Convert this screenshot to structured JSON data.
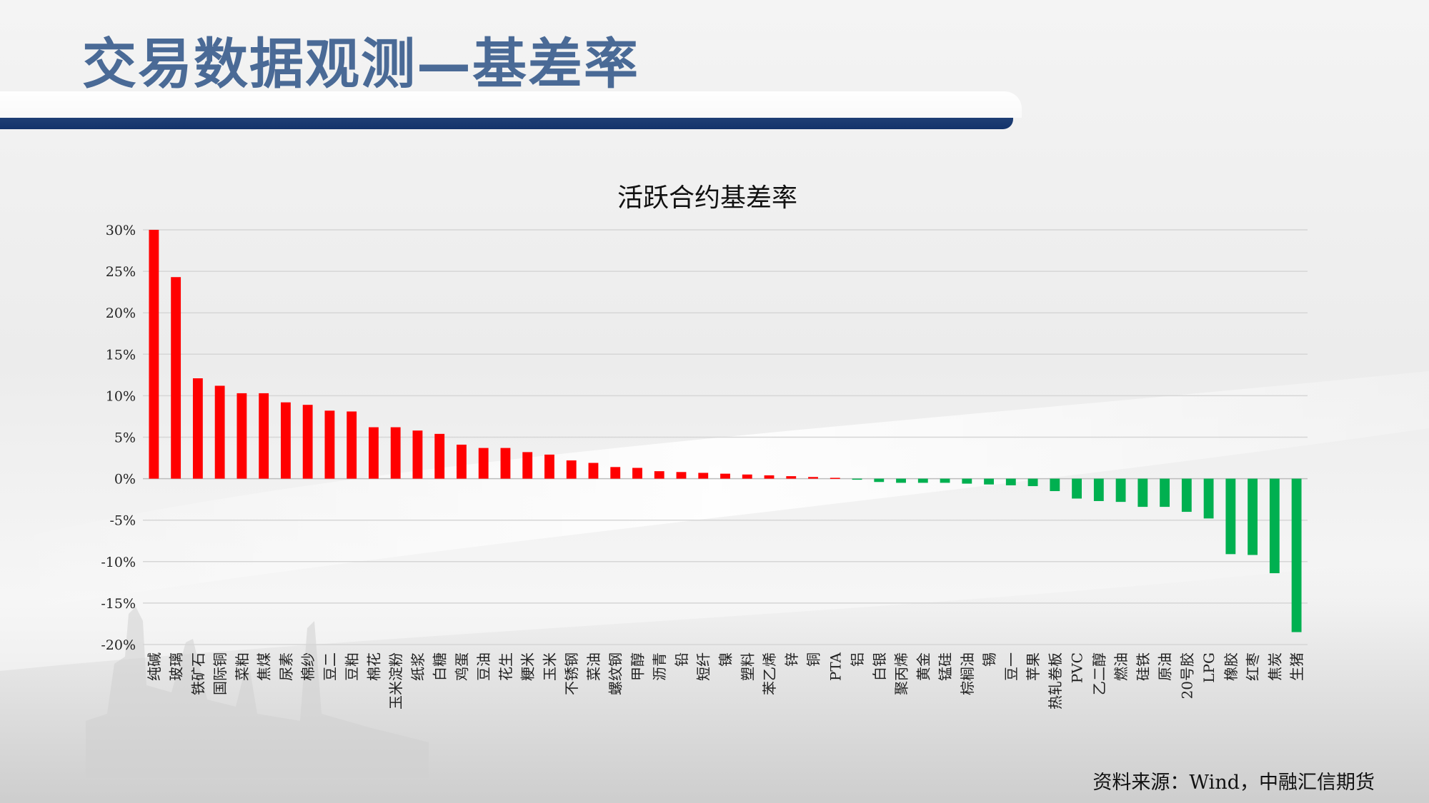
{
  "slide": {
    "title": "交易数据观测—基差率",
    "source": "资料来源：Wind，中融汇信期货"
  },
  "colors": {
    "positive": "#ff0000",
    "negative": "#00b050",
    "title": "#4a6a96",
    "rule": "#1f3f75"
  },
  "chart_data": {
    "type": "bar",
    "title": "活跃合约基差率",
    "xlabel": "",
    "ylabel": "",
    "ylim": [
      -0.2,
      0.3
    ],
    "yticks": [
      {
        "value": 0.3,
        "label": "30%"
      },
      {
        "value": 0.25,
        "label": "25%"
      },
      {
        "value": 0.2,
        "label": "20%"
      },
      {
        "value": 0.15,
        "label": "15%"
      },
      {
        "value": 0.1,
        "label": "10%"
      },
      {
        "value": 0.05,
        "label": "5%"
      },
      {
        "value": 0.0,
        "label": "0%"
      },
      {
        "value": -0.05,
        "label": "-5%"
      },
      {
        "value": -0.1,
        "label": "-10%"
      },
      {
        "value": -0.15,
        "label": "-15%"
      },
      {
        "value": -0.2,
        "label": "-20%"
      }
    ],
    "grid": true,
    "legend": "none",
    "categories": [
      "纯碱",
      "玻璃",
      "铁矿石",
      "国际铜",
      "菜粕",
      "焦煤",
      "尿素",
      "棉纱",
      "豆二",
      "豆粕",
      "棉花",
      "玉米淀粉",
      "纸浆",
      "白糖",
      "鸡蛋",
      "豆油",
      "花生",
      "粳米",
      "玉米",
      "不锈钢",
      "菜油",
      "螺纹钢",
      "甲醇",
      "沥青",
      "铅",
      "短纤",
      "镍",
      "塑料",
      "苯乙烯",
      "锌",
      "铜",
      "PTA",
      "铝",
      "白银",
      "聚丙烯",
      "黄金",
      "锰硅",
      "棕榈油",
      "锡",
      "豆一",
      "苹果",
      "热轧卷板",
      "PVC",
      "乙二醇",
      "燃油",
      "硅铁",
      "原油",
      "20号胶",
      "LPG",
      "橡胶",
      "红枣",
      "焦炭",
      "生猪"
    ],
    "values": [
      0.3,
      0.243,
      0.121,
      0.112,
      0.103,
      0.103,
      0.092,
      0.089,
      0.082,
      0.081,
      0.062,
      0.062,
      0.058,
      0.054,
      0.041,
      0.037,
      0.037,
      0.032,
      0.029,
      0.022,
      0.019,
      0.014,
      0.013,
      0.009,
      0.008,
      0.007,
      0.006,
      0.005,
      0.004,
      0.003,
      0.002,
      0.001,
      -0.001,
      -0.004,
      -0.005,
      -0.005,
      -0.005,
      -0.006,
      -0.007,
      -0.008,
      -0.009,
      -0.015,
      -0.024,
      -0.027,
      -0.028,
      -0.034,
      -0.034,
      -0.04,
      -0.048,
      -0.091,
      -0.092,
      -0.114,
      -0.185
    ]
  }
}
